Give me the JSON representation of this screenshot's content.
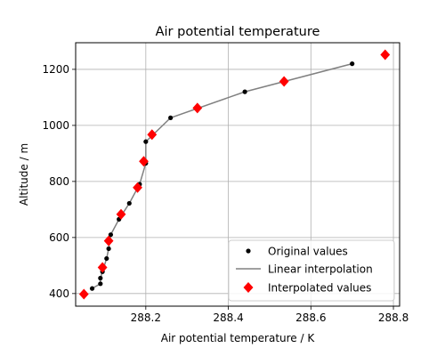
{
  "chart_data": {
    "type": "line",
    "title": "Air potential temperature",
    "xlabel": "Air potential temperature / K",
    "ylabel": "Altitude / m",
    "xlim": [
      288.03,
      288.815
    ],
    "ylim": [
      355,
      1295
    ],
    "xticks": [
      288.2,
      288.4,
      288.6,
      288.8
    ],
    "xtick_labels": [
      "288.2",
      "288.4",
      "288.6",
      "288.8"
    ],
    "yticks": [
      400,
      600,
      800,
      1000,
      1200
    ],
    "ytick_labels": [
      "400",
      "600",
      "800",
      "1000",
      "1200"
    ],
    "grid": true,
    "legend_position": "lower-right",
    "series": [
      {
        "name": "Original values",
        "style": "points",
        "color": "#000000",
        "marker": "circle",
        "x": [
          288.07,
          288.09,
          288.09,
          288.095,
          288.105,
          288.11,
          288.115,
          288.135,
          288.16,
          288.185,
          288.2,
          288.2,
          288.26,
          288.44,
          288.7
        ],
        "y": [
          418,
          435,
          455,
          478,
          525,
          560,
          610,
          665,
          722,
          790,
          865,
          942,
          1027,
          1120,
          1220
        ]
      },
      {
        "name": "Linear interpolation",
        "style": "line",
        "color": "#808080",
        "x": [
          288.07,
          288.09,
          288.09,
          288.095,
          288.105,
          288.11,
          288.115,
          288.135,
          288.16,
          288.185,
          288.2,
          288.2,
          288.26,
          288.44,
          288.7
        ],
        "y": [
          418,
          435,
          455,
          478,
          525,
          560,
          610,
          665,
          722,
          790,
          865,
          942,
          1027,
          1120,
          1220
        ]
      },
      {
        "name": "Interpolated values",
        "style": "points",
        "color": "#ff0000",
        "marker": "diamond",
        "x": [
          288.05,
          288.095,
          288.11,
          288.14,
          288.18,
          288.195,
          288.215,
          288.325,
          288.535,
          288.78
        ],
        "y": [
          398,
          493,
          588,
          683,
          778,
          872,
          967,
          1062,
          1157,
          1252
        ]
      }
    ]
  }
}
